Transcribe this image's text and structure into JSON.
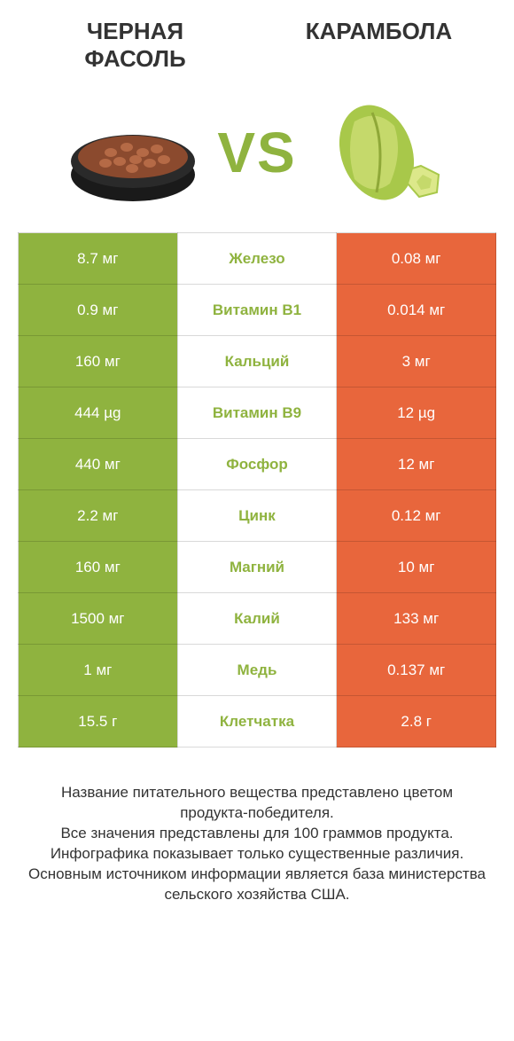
{
  "left_title": "ЧЕРНАЯ ФАСОЛЬ",
  "right_title": "КАРАМБОЛА",
  "vs": "VS",
  "colors": {
    "left_bg": "#8fb33f",
    "right_bg": "#e8663c",
    "mid_winner_left": "#8fb33f",
    "mid_winner_right": "#e8663c",
    "mid_bg": "#ffffff",
    "text_white": "#ffffff"
  },
  "rows": [
    {
      "left": "8.7 мг",
      "mid": "Железо",
      "right": "0.08 мг",
      "winner": "left"
    },
    {
      "left": "0.9 мг",
      "mid": "Витамин B1",
      "right": "0.014 мг",
      "winner": "left"
    },
    {
      "left": "160 мг",
      "mid": "Кальций",
      "right": "3 мг",
      "winner": "left"
    },
    {
      "left": "444 µg",
      "mid": "Витамин B9",
      "right": "12 µg",
      "winner": "left"
    },
    {
      "left": "440 мг",
      "mid": "Фосфор",
      "right": "12 мг",
      "winner": "left"
    },
    {
      "left": "2.2 мг",
      "mid": "Цинк",
      "right": "0.12 мг",
      "winner": "left"
    },
    {
      "left": "160 мг",
      "mid": "Магний",
      "right": "10 мг",
      "winner": "left"
    },
    {
      "left": "1500 мг",
      "mid": "Калий",
      "right": "133 мг",
      "winner": "left"
    },
    {
      "left": "1 мг",
      "mid": "Медь",
      "right": "0.137 мг",
      "winner": "left"
    },
    {
      "left": "15.5 г",
      "mid": "Клетчатка",
      "right": "2.8 г",
      "winner": "left"
    }
  ],
  "footer_lines": [
    "Название питательного вещества представлено цветом продукта-победителя.",
    "Все значения представлены для 100 граммов продукта.",
    "Инфографика показывает только существенные различия.",
    "Основным источником информации является база министерства сельского хозяйства США."
  ]
}
